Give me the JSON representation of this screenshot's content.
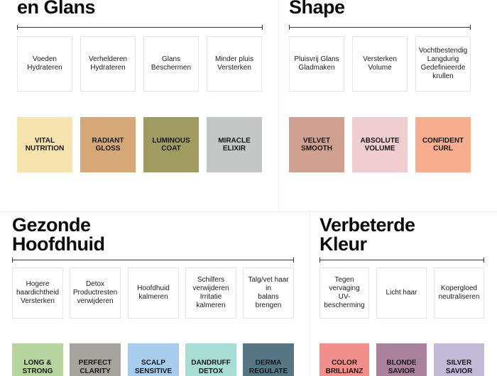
{
  "sections": {
    "glans": {
      "title": "en Glans",
      "benefits": [
        "Voeden\nHydrateren",
        "Verhelderen\nHydrateren",
        "Glans\nBeschermen",
        "Minder pluis\nVersterken"
      ],
      "products": [
        {
          "name": "VITAL\nNUTRITION",
          "color": "#f6e3ad"
        },
        {
          "name": "RADIANT\nGLOSS",
          "color": "#d7a877"
        },
        {
          "name": "LUMINOUS\nCOAT",
          "color": "#a19d62"
        },
        {
          "name": "MIRACLE\nELIXIR",
          "color": "#c5c6c6"
        }
      ]
    },
    "shape": {
      "title": "Shape",
      "benefits": [
        "Pluisvrij Glans\nGladmaken",
        "Versterken\nVolume",
        "Vochtbestendig\nLangdurig\nGedefinieerde\nkrullen"
      ],
      "products": [
        {
          "name": "VELVET\nSMOOTH",
          "color": "#d0a191"
        },
        {
          "name": "ABSOLUTE\nVOLUME",
          "color": "#efcdd0"
        },
        {
          "name": "CONFIDENT\nCURL",
          "color": "#f9ad8f"
        }
      ]
    },
    "hoofdhuid": {
      "title": "Gezonde\nHoofdhuid",
      "benefits": [
        "Hogere\nhaardichtheid\nVersterken",
        "Detox\nProductresten\nverwijderen",
        "Hoofdhuid\nkalmeren",
        "Schilfers\nverwijderen\nIrritatie\nkalmeren",
        "Talg/vet haar in\nbalans brengen"
      ],
      "products": [
        {
          "name": "LONG &\nSTRONG",
          "color": "#b6d59e"
        },
        {
          "name": "PERFECT\nCLARITY",
          "color": "#a7a39e"
        },
        {
          "name": "SCALP\nSENSITIVE",
          "color": "#a8ccec"
        },
        {
          "name": "DANDRUFF\nDETOX",
          "color": "#a8ddd5"
        },
        {
          "name": "DERMA\nREGULATE",
          "color": "#577683"
        }
      ]
    },
    "kleur": {
      "title": "Verbeterde\nKleur",
      "benefits": [
        "Tegen\nvervaging UV-\nbescherming",
        "Licht haar",
        "Kopergloed\nneutraliseren"
      ],
      "products": [
        {
          "name": "COLOR\nBRILLIANZ",
          "color": "#f08f8c"
        },
        {
          "name": "BLONDE\nSAVIOR",
          "color": "#a9819b"
        },
        {
          "name": "SILVER\nSAVIOR",
          "color": "#c3bad8"
        }
      ]
    }
  }
}
